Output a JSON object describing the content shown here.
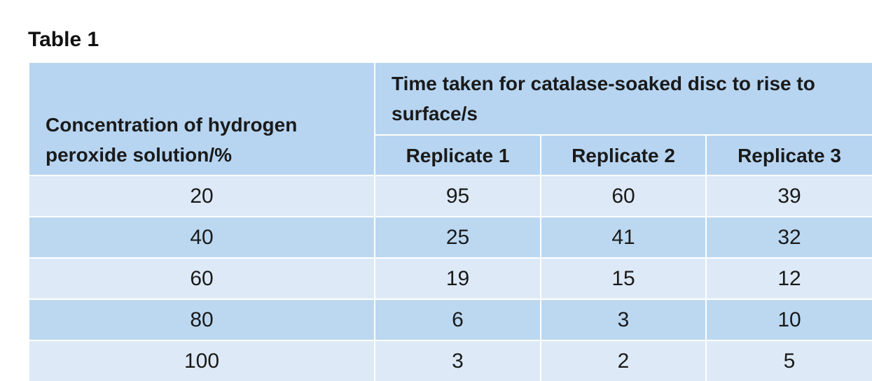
{
  "title": "Table 1",
  "table": {
    "header": {
      "concentration": "Concentration of hydrogen peroxide solution/%",
      "time": "Time taken for catalase-soaked disc to rise to surface/s",
      "replicates": [
        "Replicate 1",
        "Replicate 2",
        "Replicate 3"
      ]
    },
    "rows": [
      [
        20,
        95,
        60,
        39
      ],
      [
        40,
        25,
        41,
        32
      ],
      [
        60,
        19,
        15,
        12
      ],
      [
        80,
        6,
        3,
        10
      ],
      [
        100,
        3,
        2,
        5
      ]
    ]
  }
}
